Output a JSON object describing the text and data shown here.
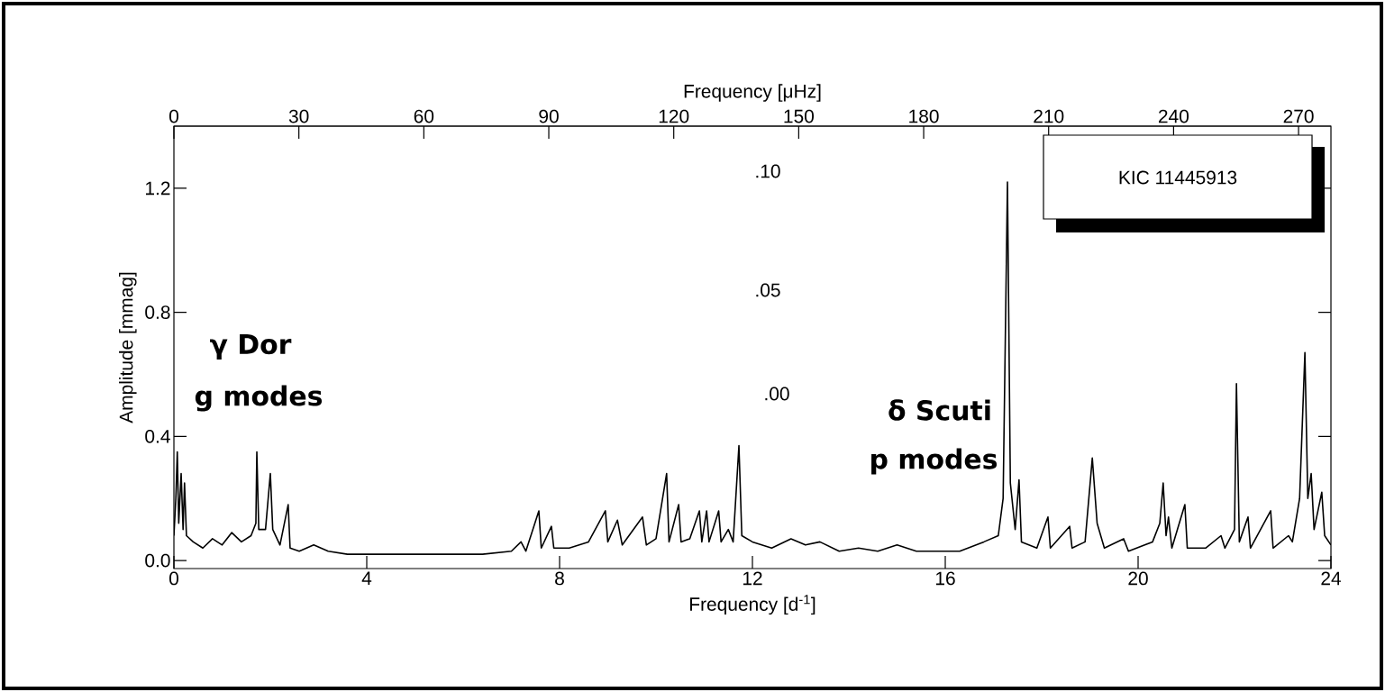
{
  "chart_data": {
    "type": "line",
    "xlabel": "Frequency [d$^{-1}$]",
    "ylabel": "Amplitude [mmag]",
    "x2label": "Frequency [μHz]",
    "xlim": [
      0,
      24
    ],
    "xticks": [
      0,
      4,
      8,
      12,
      16,
      20,
      24
    ],
    "ylim": [
      -0.026,
      1.4
    ],
    "yticks": [
      {
        "value": 0,
        "label": "0.0"
      },
      {
        "value": 0.4,
        "label": "0.4"
      },
      {
        "value": 0.8,
        "label": "0.8"
      },
      {
        "value": 1.2,
        "label": "1.2"
      }
    ],
    "x2lim": [
      0,
      277.78
    ],
    "x2ticks": [
      0,
      30,
      60,
      90,
      120,
      150,
      180,
      210,
      240,
      270
    ],
    "grid": false,
    "marker": "none",
    "line_style": "solid",
    "annotations": [
      "γ Dor",
      "g modes",
      ".10",
      ".05",
      ".00",
      "δ Scuti",
      "p modes",
      "KIC 11445913"
    ],
    "series": [
      {
        "color": "#000000",
        "x": [
          0,
          0.04,
          0.07,
          0.1,
          0.15,
          0.19,
          0.22,
          0.26,
          0.4,
          0.6,
          0.8,
          1.0,
          1.2,
          1.4,
          1.6,
          1.7,
          1.72,
          1.76,
          1.9,
          2.0,
          2.05,
          2.2,
          2.37,
          2.41,
          2.6,
          2.9,
          3.2,
          3.6,
          4.0,
          4.6,
          5.2,
          5.8,
          6.4,
          7.0,
          7.2,
          7.3,
          7.57,
          7.62,
          7.83,
          7.88,
          8.2,
          8.6,
          8.95,
          9.0,
          9.2,
          9.3,
          9.72,
          9.8,
          10.0,
          10.22,
          10.27,
          10.47,
          10.52,
          10.7,
          10.9,
          10.95,
          11.05,
          11.1,
          11.3,
          11.35,
          11.5,
          11.6,
          11.72,
          11.78,
          12.0,
          12.4,
          12.8,
          13.1,
          13.4,
          13.8,
          14.2,
          14.6,
          15.0,
          15.4,
          15.8,
          16.3,
          16.8,
          17.1,
          17.2,
          17.29,
          17.35,
          17.45,
          17.53,
          17.58,
          17.9,
          18.13,
          18.18,
          18.58,
          18.63,
          18.9,
          19.05,
          19.15,
          19.3,
          19.7,
          19.8,
          20.3,
          20.45,
          20.52,
          20.58,
          20.63,
          20.7,
          20.97,
          21.02,
          21.4,
          21.72,
          21.8,
          22.0,
          22.04,
          22.1,
          22.28,
          22.33,
          22.75,
          22.8,
          23.12,
          23.2,
          23.35,
          23.46,
          23.52,
          23.59,
          23.65,
          23.81,
          23.87,
          24.0
        ],
        "values": [
          0.08,
          0.2,
          0.35,
          0.12,
          0.28,
          0.1,
          0.25,
          0.08,
          0.06,
          0.04,
          0.07,
          0.05,
          0.09,
          0.06,
          0.08,
          0.12,
          0.35,
          0.1,
          0.1,
          0.28,
          0.1,
          0.05,
          0.18,
          0.04,
          0.03,
          0.05,
          0.03,
          0.02,
          0.02,
          0.02,
          0.02,
          0.02,
          0.02,
          0.03,
          0.06,
          0.03,
          0.16,
          0.04,
          0.11,
          0.04,
          0.04,
          0.06,
          0.16,
          0.06,
          0.13,
          0.05,
          0.14,
          0.05,
          0.07,
          0.28,
          0.06,
          0.18,
          0.06,
          0.07,
          0.16,
          0.06,
          0.16,
          0.06,
          0.16,
          0.06,
          0.1,
          0.06,
          0.37,
          0.08,
          0.06,
          0.04,
          0.07,
          0.05,
          0.06,
          0.03,
          0.04,
          0.03,
          0.05,
          0.03,
          0.03,
          0.03,
          0.06,
          0.08,
          0.2,
          1.22,
          0.25,
          0.1,
          0.26,
          0.06,
          0.04,
          0.14,
          0.04,
          0.11,
          0.04,
          0.06,
          0.33,
          0.12,
          0.04,
          0.07,
          0.03,
          0.06,
          0.12,
          0.25,
          0.08,
          0.14,
          0.04,
          0.18,
          0.04,
          0.04,
          0.08,
          0.04,
          0.1,
          0.57,
          0.06,
          0.14,
          0.04,
          0.16,
          0.04,
          0.08,
          0.06,
          0.2,
          0.67,
          0.2,
          0.28,
          0.1,
          0.22,
          0.08,
          0.05
        ]
      }
    ]
  }
}
